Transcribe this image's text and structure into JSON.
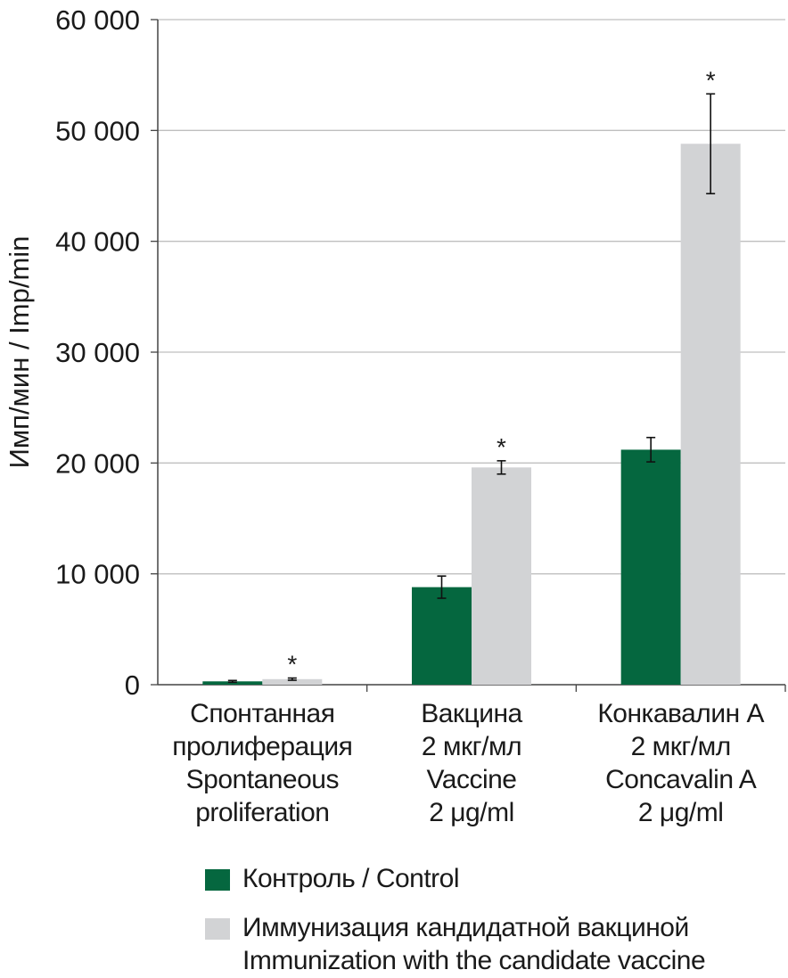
{
  "chart_data": {
    "type": "bar",
    "ylabel": "Имп/мин / Imp/min",
    "ylim": [
      0,
      60000
    ],
    "yticks": [
      0,
      10000,
      20000,
      30000,
      40000,
      50000,
      60000
    ],
    "ytick_labels": [
      "0",
      "10 000",
      "20 000",
      "30 000",
      "40 000",
      "50 000",
      "60 000"
    ],
    "grid": true,
    "categories": [
      [
        "Спонтанная",
        "пролиферация",
        "Spontaneous",
        "proliferation"
      ],
      [
        "Вакцина",
        "2 мкг/мл",
        "Vaccine",
        "2 μg/ml"
      ],
      [
        "Конкавалин А",
        "2 мкг/мл",
        "Concavalin A",
        "2 μg/ml"
      ]
    ],
    "series": [
      {
        "name": "Контроль / Control",
        "color": "#05673f",
        "values": [
          300,
          8800,
          21200
        ],
        "errors": [
          80,
          1000,
          1100
        ]
      },
      {
        "name": "Иммунизация кандидатной вакциной\nImmunization with the candidate vaccine",
        "color": "#d2d3d5",
        "values": [
          500,
          19600,
          48800
        ],
        "errors": [
          100,
          600,
          4500
        ]
      }
    ],
    "annotations": [
      {
        "category": 0,
        "series": 1,
        "text": "*"
      },
      {
        "category": 1,
        "series": 1,
        "text": "*"
      },
      {
        "category": 2,
        "series": 1,
        "text": "*"
      }
    ],
    "legend_position": "bottom"
  }
}
